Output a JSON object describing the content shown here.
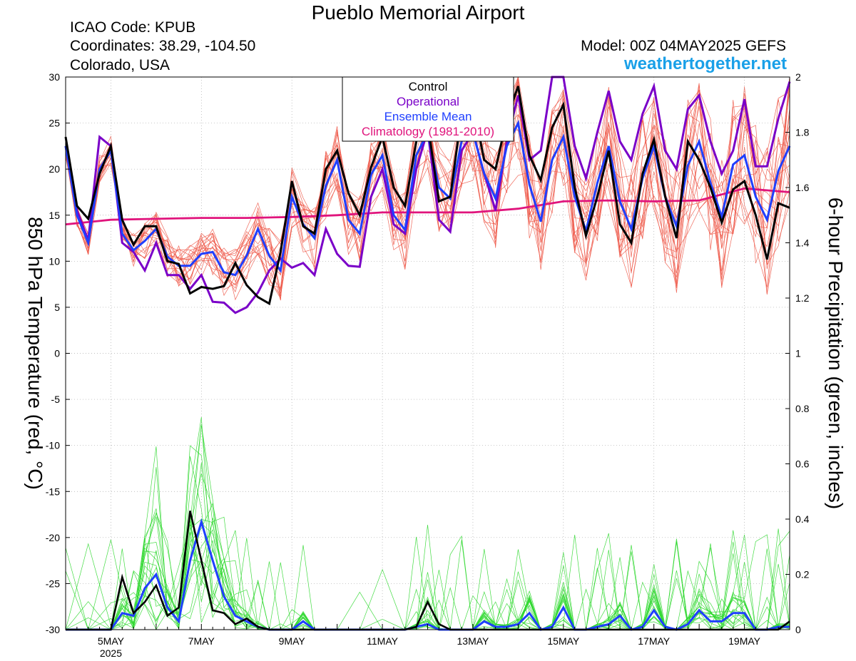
{
  "header": {
    "title": "Pueblo Memorial Airport",
    "icao": "ICAO Code: KPUB",
    "coords": "Coordinates: 38.29, -104.50",
    "region": "Colorado, USA",
    "model": "Model: 00Z 04MAY2025 GEFS",
    "site": "weathertogether.net"
  },
  "colors": {
    "control": "#000000",
    "operational": "#7a00c8",
    "ensemble_mean": "#1f3fff",
    "climatology": "#e0147c",
    "member_temp": "#ee5a4a",
    "member_precip": "#2fd82f",
    "site": "#1aa0e8"
  },
  "chart_data": {
    "type": "line",
    "title": "Pueblo Memorial Airport",
    "ylabel": "850 hPa Temperature (red, °C)",
    "y2label": "6-hour Precipitation (green, inches)",
    "ylim": [
      -30,
      30
    ],
    "y2lim": [
      0,
      2
    ],
    "yticks": [
      "30",
      "25",
      "20",
      "15",
      "10",
      "5",
      "0",
      "-5",
      "-10",
      "-15",
      "-20",
      "-25",
      "-30"
    ],
    "y2ticks": [
      "2",
      "1.8",
      "1.6",
      "1.4",
      "1.2",
      "1",
      "0.8",
      "0.6",
      "0.4",
      "0.2",
      "0"
    ],
    "xlim": [
      0,
      16
    ],
    "x_unit": "days after 2025-05-04 00Z",
    "x_ticks": [
      {
        "label": "5MAY",
        "x": 1,
        "year": "2025"
      },
      {
        "label": "7MAY",
        "x": 3
      },
      {
        "label": "9MAY",
        "x": 5
      },
      {
        "label": "11MAY",
        "x": 7
      },
      {
        "label": "13MAY",
        "x": 9
      },
      {
        "label": "15MAY",
        "x": 11
      },
      {
        "label": "17MAY",
        "x": 13
      },
      {
        "label": "19MAY",
        "x": 15
      }
    ],
    "legend": {
      "position": "top-center",
      "entries": [
        "Control",
        "Operational",
        "Ensemble Mean",
        "Climatology (1981-2010)"
      ]
    },
    "temperature": {
      "control": [
        [
          0,
          23.5
        ],
        [
          0.25,
          16
        ],
        [
          0.5,
          14.6
        ],
        [
          0.75,
          19.5
        ],
        [
          1,
          22.5
        ],
        [
          1.25,
          14.5
        ],
        [
          1.5,
          11.8
        ],
        [
          1.75,
          13.8
        ],
        [
          2,
          13.8
        ],
        [
          2.25,
          10
        ],
        [
          2.5,
          9.7
        ],
        [
          2.75,
          6.5
        ],
        [
          3,
          7.2
        ],
        [
          3.25,
          7
        ],
        [
          3.5,
          7.3
        ],
        [
          3.75,
          9.8
        ],
        [
          4,
          7.4
        ],
        [
          4.25,
          6.1
        ],
        [
          4.5,
          5.4
        ],
        [
          4.75,
          11
        ],
        [
          5,
          18.7
        ],
        [
          5.25,
          13.8
        ],
        [
          5.5,
          13
        ],
        [
          5.75,
          20
        ],
        [
          6,
          22
        ],
        [
          6.25,
          17.4
        ],
        [
          6.5,
          15
        ],
        [
          6.75,
          20.2
        ],
        [
          7,
          23.5
        ],
        [
          7.25,
          18
        ],
        [
          7.5,
          16
        ],
        [
          7.75,
          23
        ],
        [
          8,
          25
        ],
        [
          8.25,
          16.5
        ],
        [
          8.5,
          17
        ],
        [
          8.75,
          26
        ],
        [
          9,
          27
        ],
        [
          9.25,
          21
        ],
        [
          9.5,
          20
        ],
        [
          9.75,
          25.5
        ],
        [
          10,
          29
        ],
        [
          10.25,
          21.5
        ],
        [
          10.5,
          18.8
        ],
        [
          10.75,
          24.5
        ],
        [
          11,
          27
        ],
        [
          11.25,
          18
        ],
        [
          11.5,
          12.8
        ],
        [
          11.75,
          17
        ],
        [
          12,
          22
        ],
        [
          12.25,
          14
        ],
        [
          12.5,
          12
        ],
        [
          12.75,
          19.5
        ],
        [
          13,
          23.2
        ],
        [
          13.25,
          17
        ],
        [
          13.5,
          12.5
        ],
        [
          13.75,
          23
        ],
        [
          14,
          21
        ],
        [
          14.25,
          18
        ],
        [
          14.5,
          14.2
        ],
        [
          14.75,
          17.8
        ],
        [
          15,
          18.7
        ],
        [
          15.25,
          15
        ],
        [
          15.5,
          10.2
        ],
        [
          15.75,
          16.3
        ],
        [
          16,
          15.8
        ]
      ],
      "operational": [
        [
          0,
          22.5
        ],
        [
          0.25,
          15.5
        ],
        [
          0.5,
          12.3
        ],
        [
          0.75,
          23.5
        ],
        [
          1,
          22.5
        ],
        [
          1.25,
          12
        ],
        [
          1.5,
          11
        ],
        [
          1.75,
          9
        ],
        [
          2,
          12
        ],
        [
          2.25,
          8.5
        ],
        [
          2.5,
          8.5
        ],
        [
          2.75,
          7
        ],
        [
          3,
          8.5
        ],
        [
          3.25,
          5.6
        ],
        [
          3.5,
          5.5
        ],
        [
          3.75,
          4.4
        ],
        [
          4,
          5
        ],
        [
          4.25,
          6.6
        ],
        [
          4.5,
          9
        ],
        [
          4.75,
          10.3
        ],
        [
          5,
          9.3
        ],
        [
          5.25,
          9.8
        ],
        [
          5.5,
          8.5
        ],
        [
          5.75,
          13.5
        ],
        [
          6,
          10.8
        ],
        [
          6.25,
          9.5
        ],
        [
          6.5,
          9.4
        ],
        [
          6.75,
          17
        ],
        [
          7,
          20
        ],
        [
          7.25,
          14
        ],
        [
          7.5,
          13
        ],
        [
          7.75,
          20
        ],
        [
          8,
          24.2
        ],
        [
          8.25,
          14.5
        ],
        [
          8.5,
          13.2
        ],
        [
          8.75,
          22
        ],
        [
          9,
          24
        ],
        [
          9.25,
          19.5
        ],
        [
          9.5,
          15.5
        ],
        [
          9.75,
          23
        ],
        [
          10,
          28
        ],
        [
          10.25,
          21
        ],
        [
          10.5,
          22
        ],
        [
          10.75,
          31
        ],
        [
          11,
          30
        ],
        [
          11.25,
          22.5
        ],
        [
          11.5,
          19
        ],
        [
          11.75,
          24
        ],
        [
          12,
          28.5
        ],
        [
          12.25,
          23
        ],
        [
          12.5,
          21
        ],
        [
          12.75,
          26
        ],
        [
          13,
          29
        ],
        [
          13.25,
          22
        ],
        [
          13.5,
          20
        ],
        [
          13.75,
          26.5
        ],
        [
          14,
          28
        ],
        [
          14.25,
          23
        ],
        [
          14.5,
          19.5
        ],
        [
          14.75,
          22
        ],
        [
          15,
          27.6
        ],
        [
          15.25,
          20.3
        ],
        [
          15.5,
          20.3
        ],
        [
          15.75,
          25.5
        ],
        [
          16,
          29.5
        ]
      ],
      "ensemble_mean": [
        [
          0,
          22.5
        ],
        [
          0.25,
          15
        ],
        [
          0.5,
          12
        ],
        [
          0.75,
          20
        ],
        [
          1,
          22
        ],
        [
          1.25,
          13
        ],
        [
          1.5,
          11.2
        ],
        [
          1.75,
          12.2
        ],
        [
          2,
          13.5
        ],
        [
          2.25,
          10.5
        ],
        [
          2.5,
          9.5
        ],
        [
          2.75,
          9.5
        ],
        [
          3,
          10.8
        ],
        [
          3.25,
          11
        ],
        [
          3.5,
          8.8
        ],
        [
          3.75,
          8.5
        ],
        [
          4,
          10.6
        ],
        [
          4.25,
          13.5
        ],
        [
          4.5,
          10.6
        ],
        [
          4.75,
          9
        ],
        [
          5,
          17
        ],
        [
          5.25,
          14
        ],
        [
          5.5,
          12.5
        ],
        [
          5.75,
          18.2
        ],
        [
          6,
          21
        ],
        [
          6.25,
          14.5
        ],
        [
          6.5,
          13
        ],
        [
          6.75,
          19.4
        ],
        [
          7,
          21.5
        ],
        [
          7.25,
          15
        ],
        [
          7.5,
          13.4
        ],
        [
          7.75,
          21.5
        ],
        [
          8,
          24
        ],
        [
          8.25,
          18
        ],
        [
          8.5,
          16.8
        ],
        [
          8.75,
          23
        ],
        [
          9,
          24
        ],
        [
          9.25,
          19.5
        ],
        [
          9.5,
          16.8
        ],
        [
          9.75,
          22.5
        ],
        [
          10,
          25
        ],
        [
          10.25,
          18.3
        ],
        [
          10.5,
          14.3
        ],
        [
          10.75,
          21
        ],
        [
          11,
          23.5
        ],
        [
          11.25,
          17
        ],
        [
          11.5,
          13.3
        ],
        [
          11.75,
          18.5
        ],
        [
          12,
          22.5
        ],
        [
          12.25,
          16.5
        ],
        [
          12.5,
          13.5
        ],
        [
          12.75,
          19
        ],
        [
          13,
          22.5
        ],
        [
          13.25,
          17
        ],
        [
          13.5,
          13.8
        ],
        [
          13.75,
          20.4
        ],
        [
          14,
          23
        ],
        [
          14.25,
          18.5
        ],
        [
          14.5,
          14.8
        ],
        [
          14.75,
          20.5
        ],
        [
          15,
          21.5
        ],
        [
          15.25,
          17
        ],
        [
          15.5,
          14.5
        ],
        [
          15.75,
          19.8
        ],
        [
          16,
          22.5
        ]
      ],
      "climatology": [
        [
          0,
          14
        ],
        [
          1,
          14.5
        ],
        [
          2,
          14.6
        ],
        [
          3,
          14.7
        ],
        [
          4,
          14.7
        ],
        [
          5,
          14.8
        ],
        [
          6,
          15
        ],
        [
          7,
          15.3
        ],
        [
          8,
          15.3
        ],
        [
          9,
          15.3
        ],
        [
          10,
          15.7
        ],
        [
          11,
          16.5
        ],
        [
          12,
          16.6
        ],
        [
          13,
          16.5
        ],
        [
          14,
          16.6
        ],
        [
          15,
          17.9
        ],
        [
          16,
          17.5
        ]
      ]
    },
    "precipitation": {
      "control": [
        [
          0,
          0
        ],
        [
          0.5,
          0
        ],
        [
          1,
          0
        ],
        [
          1.25,
          0.19
        ],
        [
          1.5,
          0.06
        ],
        [
          1.75,
          0.1
        ],
        [
          2,
          0.16
        ],
        [
          2.25,
          0.05
        ],
        [
          2.5,
          0.08
        ],
        [
          2.75,
          0.43
        ],
        [
          3,
          0.25
        ],
        [
          3.25,
          0.07
        ],
        [
          3.5,
          0.06
        ],
        [
          3.75,
          0.02
        ],
        [
          4,
          0.04
        ],
        [
          4.25,
          0.01
        ],
        [
          4.5,
          0
        ],
        [
          5,
          0
        ],
        [
          6,
          0
        ],
        [
          7,
          0
        ],
        [
          7.5,
          0
        ],
        [
          7.75,
          0.01
        ],
        [
          8,
          0.1
        ],
        [
          8.25,
          0.02
        ],
        [
          8.5,
          0
        ],
        [
          9,
          0
        ],
        [
          10,
          0
        ],
        [
          11,
          0
        ],
        [
          12,
          0
        ],
        [
          13,
          0
        ],
        [
          14,
          0
        ],
        [
          15,
          0
        ],
        [
          15.75,
          0
        ],
        [
          16,
          0.03
        ]
      ],
      "ensemble_mean": [
        [
          0,
          0
        ],
        [
          0.5,
          0
        ],
        [
          1,
          0
        ],
        [
          1.25,
          0.06
        ],
        [
          1.5,
          0.05
        ],
        [
          1.75,
          0.15
        ],
        [
          2,
          0.2
        ],
        [
          2.25,
          0.08
        ],
        [
          2.5,
          0.03
        ],
        [
          2.75,
          0.25
        ],
        [
          3,
          0.39
        ],
        [
          3.25,
          0.25
        ],
        [
          3.5,
          0.12
        ],
        [
          3.75,
          0.05
        ],
        [
          4,
          0.03
        ],
        [
          4.25,
          0.01
        ],
        [
          4.5,
          0
        ],
        [
          4.75,
          0
        ],
        [
          5,
          0
        ],
        [
          5.25,
          0.03
        ],
        [
          5.5,
          0
        ],
        [
          6,
          0
        ],
        [
          6.5,
          0
        ],
        [
          7,
          0
        ],
        [
          7.5,
          0
        ],
        [
          7.75,
          0.01
        ],
        [
          8,
          0.02
        ],
        [
          8.25,
          0
        ],
        [
          8.5,
          0
        ],
        [
          8.75,
          0
        ],
        [
          9,
          0
        ],
        [
          9.25,
          0.03
        ],
        [
          9.5,
          0.01
        ],
        [
          9.75,
          0.01
        ],
        [
          10,
          0.02
        ],
        [
          10.25,
          0.06
        ],
        [
          10.5,
          0
        ],
        [
          10.75,
          0.01
        ],
        [
          11,
          0.08
        ],
        [
          11.25,
          0
        ],
        [
          11.5,
          0
        ],
        [
          11.75,
          0.01
        ],
        [
          12,
          0.02
        ],
        [
          12.25,
          0.05
        ],
        [
          12.5,
          0
        ],
        [
          12.75,
          0.01
        ],
        [
          13,
          0.07
        ],
        [
          13.25,
          0.01
        ],
        [
          13.5,
          0
        ],
        [
          13.75,
          0.02
        ],
        [
          14,
          0.07
        ],
        [
          14.25,
          0.03
        ],
        [
          14.5,
          0.03
        ],
        [
          14.75,
          0.06
        ],
        [
          15,
          0.06
        ],
        [
          15.25,
          0
        ],
        [
          15.5,
          0
        ],
        [
          15.75,
          0.01
        ],
        [
          16,
          0.01
        ]
      ]
    }
  }
}
